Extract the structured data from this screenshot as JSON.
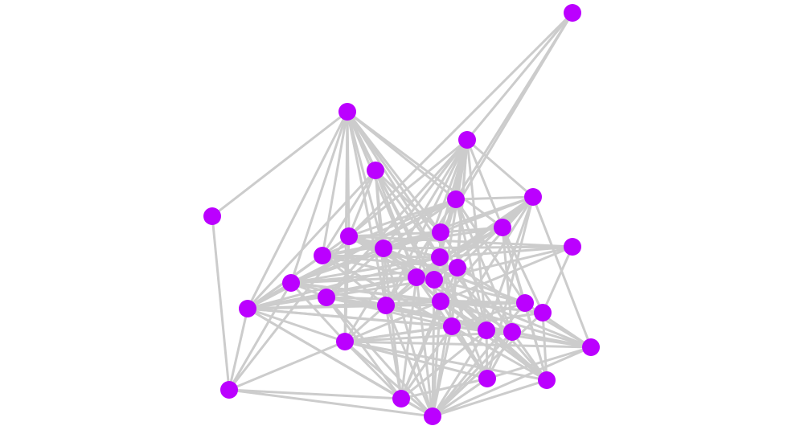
{
  "graph": {
    "node_color": "#bb00ff",
    "edge_color": "#cccccc",
    "nodes": [
      "n0",
      "n1",
      "n2",
      "n3",
      "n4",
      "n5",
      "n6",
      "n7",
      "n8",
      "n9",
      "n10",
      "n11",
      "n12",
      "n13",
      "n14",
      "n15",
      "n16",
      "n17",
      "n18",
      "n19",
      "n20",
      "n21",
      "n22",
      "n23",
      "n24",
      "n25",
      "n26",
      "n27",
      "n28",
      "n29",
      "n30",
      "n31",
      "n32",
      "n33"
    ],
    "edges": [
      [
        "n0",
        "n8"
      ],
      [
        "n0",
        "n9"
      ],
      [
        "n0",
        "n5"
      ],
      [
        "n0",
        "n2"
      ],
      [
        "n1",
        "n4"
      ],
      [
        "n1",
        "n3"
      ],
      [
        "n1",
        "n8"
      ],
      [
        "n1",
        "n11"
      ],
      [
        "n1",
        "n17"
      ],
      [
        "n1",
        "n19"
      ],
      [
        "n1",
        "n10"
      ],
      [
        "n1",
        "n9"
      ],
      [
        "n1",
        "n5"
      ],
      [
        "n1",
        "n13"
      ],
      [
        "n1",
        "n14"
      ],
      [
        "n1",
        "n15"
      ],
      [
        "n1",
        "n20"
      ],
      [
        "n1",
        "n21"
      ],
      [
        "n1",
        "n27"
      ],
      [
        "n1",
        "n7"
      ],
      [
        "n2",
        "n5"
      ],
      [
        "n2",
        "n6"
      ],
      [
        "n2",
        "n7"
      ],
      [
        "n2",
        "n9"
      ],
      [
        "n2",
        "n13"
      ],
      [
        "n2",
        "n14"
      ],
      [
        "n2",
        "n15"
      ],
      [
        "n2",
        "n16"
      ],
      [
        "n2",
        "n21"
      ],
      [
        "n2",
        "n24"
      ],
      [
        "n2",
        "n25"
      ],
      [
        "n2",
        "n8"
      ],
      [
        "n2",
        "n10"
      ],
      [
        "n2",
        "n20"
      ],
      [
        "n2",
        "n27"
      ],
      [
        "n2",
        "n18"
      ],
      [
        "n3",
        "n8"
      ],
      [
        "n3",
        "n10"
      ],
      [
        "n3",
        "n13"
      ],
      [
        "n3",
        "n15"
      ],
      [
        "n3",
        "n16"
      ],
      [
        "n3",
        "n20"
      ],
      [
        "n3",
        "n11"
      ],
      [
        "n3",
        "n19"
      ],
      [
        "n3",
        "n9"
      ],
      [
        "n4",
        "n31"
      ],
      [
        "n5",
        "n6"
      ],
      [
        "n5",
        "n8"
      ],
      [
        "n5",
        "n10"
      ],
      [
        "n5",
        "n11"
      ],
      [
        "n5",
        "n17"
      ],
      [
        "n5",
        "n19"
      ],
      [
        "n5",
        "n20"
      ],
      [
        "n5",
        "n22"
      ],
      [
        "n5",
        "n25"
      ],
      [
        "n5",
        "n26"
      ],
      [
        "n5",
        "n13"
      ],
      [
        "n6",
        "n9"
      ],
      [
        "n6",
        "n7"
      ],
      [
        "n6",
        "n14"
      ],
      [
        "n6",
        "n16"
      ],
      [
        "n6",
        "n21"
      ],
      [
        "n6",
        "n24"
      ],
      [
        "n6",
        "n25"
      ],
      [
        "n6",
        "n28"
      ],
      [
        "n6",
        "n29"
      ],
      [
        "n6",
        "n20"
      ],
      [
        "n6",
        "n15"
      ],
      [
        "n6",
        "n10"
      ],
      [
        "n7",
        "n9"
      ],
      [
        "n7",
        "n13"
      ],
      [
        "n7",
        "n15"
      ],
      [
        "n7",
        "n22"
      ],
      [
        "n7",
        "n23"
      ],
      [
        "n7",
        "n26"
      ],
      [
        "n7",
        "n30"
      ],
      [
        "n7",
        "n11"
      ],
      [
        "n8",
        "n9"
      ],
      [
        "n8",
        "n10"
      ],
      [
        "n8",
        "n13"
      ],
      [
        "n8",
        "n15"
      ],
      [
        "n8",
        "n16"
      ],
      [
        "n8",
        "n19"
      ],
      [
        "n8",
        "n27"
      ],
      [
        "n8",
        "n12"
      ],
      [
        "n8",
        "n22"
      ],
      [
        "n9",
        "n10"
      ],
      [
        "n9",
        "n11"
      ],
      [
        "n9",
        "n13"
      ],
      [
        "n9",
        "n17"
      ],
      [
        "n9",
        "n24"
      ],
      [
        "n9",
        "n26"
      ],
      [
        "n10",
        "n17"
      ],
      [
        "n10",
        "n18"
      ],
      [
        "n10",
        "n15"
      ],
      [
        "n10",
        "n22"
      ],
      [
        "n10",
        "n33"
      ],
      [
        "n10",
        "n32"
      ],
      [
        "n10",
        "n16"
      ],
      [
        "n10",
        "n21"
      ],
      [
        "n11",
        "n13"
      ],
      [
        "n11",
        "n15"
      ],
      [
        "n11",
        "n19"
      ],
      [
        "n11",
        "n20"
      ],
      [
        "n11",
        "n14"
      ],
      [
        "n11",
        "n24"
      ],
      [
        "n12",
        "n10"
      ],
      [
        "n12",
        "n13"
      ],
      [
        "n12",
        "n23"
      ],
      [
        "n12",
        "n21"
      ],
      [
        "n12",
        "n16"
      ],
      [
        "n13",
        "n17"
      ],
      [
        "n13",
        "n19"
      ],
      [
        "n13",
        "n29"
      ],
      [
        "n13",
        "n30"
      ],
      [
        "n13",
        "n27"
      ],
      [
        "n14",
        "n17"
      ],
      [
        "n14",
        "n19"
      ],
      [
        "n14",
        "n25"
      ],
      [
        "n14",
        "n28"
      ],
      [
        "n14",
        "n33"
      ],
      [
        "n14",
        "n32"
      ],
      [
        "n15",
        "n17"
      ],
      [
        "n15",
        "n19"
      ],
      [
        "n15",
        "n21"
      ],
      [
        "n15",
        "n28"
      ],
      [
        "n15",
        "n29"
      ],
      [
        "n15",
        "n32"
      ],
      [
        "n15",
        "n33"
      ],
      [
        "n15",
        "n26"
      ],
      [
        "n16",
        "n19"
      ],
      [
        "n16",
        "n25"
      ],
      [
        "n16",
        "n30"
      ],
      [
        "n16",
        "n33"
      ],
      [
        "n16",
        "n22"
      ],
      [
        "n17",
        "n18"
      ],
      [
        "n17",
        "n19"
      ],
      [
        "n17",
        "n20"
      ],
      [
        "n17",
        "n21"
      ],
      [
        "n17",
        "n23"
      ],
      [
        "n17",
        "n27"
      ],
      [
        "n18",
        "n20"
      ],
      [
        "n18",
        "n22"
      ],
      [
        "n18",
        "n32"
      ],
      [
        "n18",
        "n33"
      ],
      [
        "n18",
        "n24"
      ],
      [
        "n18",
        "n28"
      ],
      [
        "n19",
        "n20"
      ],
      [
        "n19",
        "n22"
      ],
      [
        "n19",
        "n24"
      ],
      [
        "n19",
        "n27"
      ],
      [
        "n19",
        "n31"
      ],
      [
        "n19",
        "n32"
      ],
      [
        "n19",
        "n33"
      ],
      [
        "n19",
        "n21"
      ],
      [
        "n19",
        "n26"
      ],
      [
        "n20",
        "n21"
      ],
      [
        "n20",
        "n26"
      ],
      [
        "n20",
        "n32"
      ],
      [
        "n20",
        "n33"
      ],
      [
        "n20",
        "n25"
      ],
      [
        "n21",
        "n22"
      ],
      [
        "n21",
        "n23"
      ],
      [
        "n21",
        "n25"
      ],
      [
        "n21",
        "n28"
      ],
      [
        "n21",
        "n29"
      ],
      [
        "n21",
        "n30"
      ],
      [
        "n21",
        "n32"
      ],
      [
        "n21",
        "n33"
      ],
      [
        "n21",
        "n27"
      ],
      [
        "n22",
        "n24"
      ],
      [
        "n22",
        "n28"
      ],
      [
        "n22",
        "n33"
      ],
      [
        "n22",
        "n30"
      ],
      [
        "n23",
        "n24"
      ],
      [
        "n23",
        "n33"
      ],
      [
        "n23",
        "n30"
      ],
      [
        "n23",
        "n27"
      ],
      [
        "n24",
        "n28"
      ],
      [
        "n24",
        "n29"
      ],
      [
        "n24",
        "n30"
      ],
      [
        "n24",
        "n32"
      ],
      [
        "n24",
        "n33"
      ],
      [
        "n24",
        "n27"
      ],
      [
        "n25",
        "n29"
      ],
      [
        "n25",
        "n30"
      ],
      [
        "n25",
        "n33"
      ],
      [
        "n25",
        "n32"
      ],
      [
        "n26",
        "n27"
      ],
      [
        "n26",
        "n28"
      ],
      [
        "n26",
        "n29"
      ],
      [
        "n26",
        "n30"
      ],
      [
        "n26",
        "n33"
      ],
      [
        "n27",
        "n28"
      ],
      [
        "n27",
        "n29"
      ],
      [
        "n27",
        "n30"
      ],
      [
        "n27",
        "n32"
      ],
      [
        "n27",
        "n33"
      ],
      [
        "n27",
        "n31"
      ],
      [
        "n28",
        "n33"
      ],
      [
        "n28",
        "n29"
      ],
      [
        "n29",
        "n32"
      ],
      [
        "n29",
        "n33"
      ],
      [
        "n31",
        "n32"
      ],
      [
        "n31",
        "n33"
      ],
      [
        "n31",
        "n8"
      ],
      [
        "n31",
        "n17"
      ],
      [
        "n32",
        "n33"
      ],
      [
        "n30",
        "n33"
      ]
    ]
  }
}
